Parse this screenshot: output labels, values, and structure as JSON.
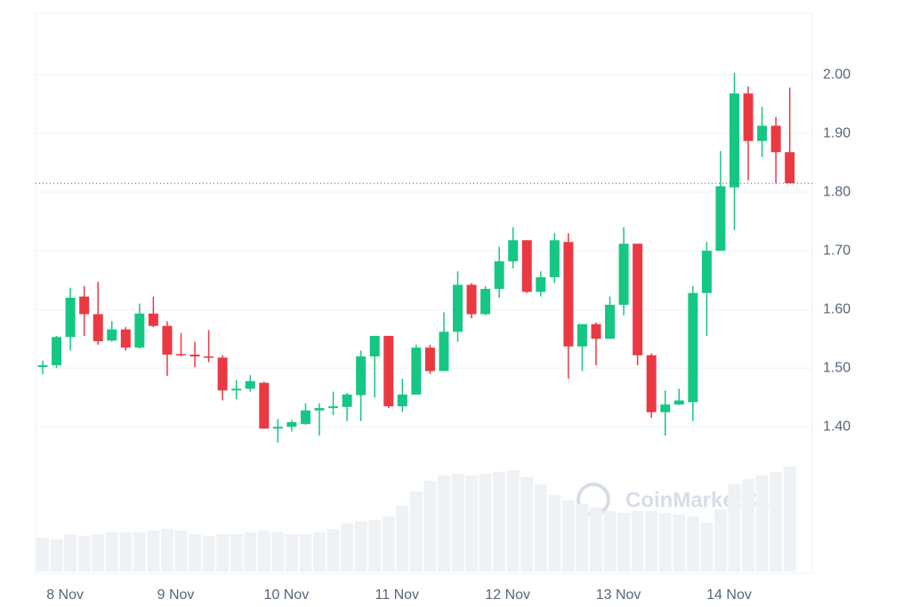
{
  "chart_data": {
    "type": "candlestick",
    "watermark": "CoinMarketCap",
    "categories": [
      null,
      null,
      "8 Nov",
      null,
      null,
      null,
      null,
      null,
      null,
      null,
      "9 Nov",
      null,
      null,
      null,
      null,
      null,
      null,
      null,
      "10 Nov",
      null,
      null,
      null,
      null,
      null,
      null,
      null,
      "11 Nov",
      null,
      null,
      null,
      null,
      null,
      null,
      null,
      "12 Nov",
      null,
      null,
      null,
      null,
      null,
      null,
      null,
      "13 Nov",
      null,
      null,
      null,
      null,
      null,
      null,
      null,
      "14 Nov",
      null,
      null,
      null,
      null
    ],
    "open": [
      1.502,
      1.505,
      1.553,
      1.622,
      1.592,
      1.547,
      1.566,
      1.535,
      1.593,
      1.572,
      1.524,
      1.523,
      1.52,
      1.518,
      1.462,
      1.465,
      1.475,
      1.397,
      1.4,
      1.405,
      1.428,
      1.432,
      1.434,
      1.454,
      1.52,
      1.555,
      1.435,
      1.455,
      1.535,
      1.495,
      1.562,
      1.642,
      1.592,
      1.635,
      1.682,
      1.718,
      1.63,
      1.655,
      1.715,
      1.537,
      1.575,
      1.55,
      1.608,
      1.712,
      1.522,
      1.425,
      1.438,
      1.442,
      1.628,
      1.7,
      1.808,
      1.968,
      1.887,
      1.913,
      1.868
    ],
    "high": [
      1.513,
      1.555,
      1.637,
      1.64,
      1.647,
      1.58,
      1.57,
      1.61,
      1.622,
      1.58,
      1.56,
      1.545,
      1.565,
      1.522,
      1.48,
      1.488,
      1.477,
      1.413,
      1.412,
      1.44,
      1.44,
      1.46,
      1.458,
      1.53,
      1.555,
      1.555,
      1.482,
      1.54,
      1.54,
      1.595,
      1.665,
      1.645,
      1.64,
      1.707,
      1.74,
      1.718,
      1.665,
      1.73,
      1.73,
      1.575,
      1.578,
      1.622,
      1.74,
      1.712,
      1.525,
      1.462,
      1.465,
      1.64,
      1.715,
      1.87,
      2.003,
      1.98,
      1.945,
      1.928,
      1.978
    ],
    "low": [
      1.49,
      1.5,
      1.53,
      1.555,
      1.54,
      1.545,
      1.53,
      1.533,
      1.57,
      1.487,
      1.52,
      1.502,
      1.51,
      1.445,
      1.447,
      1.46,
      1.397,
      1.373,
      1.392,
      1.403,
      1.385,
      1.42,
      1.41,
      1.41,
      1.45,
      1.432,
      1.425,
      1.455,
      1.49,
      1.495,
      1.545,
      1.585,
      1.59,
      1.62,
      1.67,
      1.628,
      1.622,
      1.645,
      1.482,
      1.495,
      1.505,
      1.55,
      1.59,
      1.505,
      1.415,
      1.385,
      1.437,
      1.41,
      1.555,
      1.7,
      1.735,
      1.82,
      1.86,
      1.815,
      1.815
    ],
    "close": [
      1.505,
      1.553,
      1.62,
      1.592,
      1.546,
      1.566,
      1.535,
      1.593,
      1.572,
      1.523,
      1.522,
      1.52,
      1.518,
      1.462,
      1.465,
      1.478,
      1.397,
      1.4,
      1.408,
      1.428,
      1.432,
      1.435,
      1.455,
      1.52,
      1.555,
      1.435,
      1.455,
      1.535,
      1.495,
      1.562,
      1.642,
      1.592,
      1.635,
      1.682,
      1.718,
      1.63,
      1.655,
      1.718,
      1.537,
      1.575,
      1.55,
      1.608,
      1.712,
      1.522,
      1.425,
      1.438,
      1.445,
      1.628,
      1.7,
      1.81,
      1.968,
      1.887,
      1.913,
      1.868,
      1.815
    ],
    "volume": [
      38,
      36,
      42,
      40,
      42,
      44,
      44,
      44,
      46,
      48,
      46,
      42,
      40,
      42,
      42,
      44,
      46,
      44,
      42,
      42,
      44,
      48,
      54,
      56,
      58,
      62,
      74,
      90,
      102,
      108,
      110,
      108,
      110,
      112,
      114,
      106,
      98,
      86,
      80,
      76,
      72,
      68,
      66,
      68,
      68,
      66,
      64,
      62,
      55,
      70,
      98,
      104,
      108,
      112,
      118
    ],
    "up_color": "#16c784",
    "down_color": "#ea3943",
    "volume_color": "#eff2f5",
    "ylim": [
      1.14,
      2.1
    ],
    "yticks": [
      {
        "value": 1.4,
        "label": "1.40"
      },
      {
        "value": 1.5,
        "label": "1.50"
      },
      {
        "value": 1.6,
        "label": "1.60"
      },
      {
        "value": 1.7,
        "label": "1.70"
      },
      {
        "value": 1.8,
        "label": "1.80"
      },
      {
        "value": 1.9,
        "label": "1.90"
      },
      {
        "value": 2.0,
        "label": "2.00"
      }
    ],
    "grid": true
  }
}
